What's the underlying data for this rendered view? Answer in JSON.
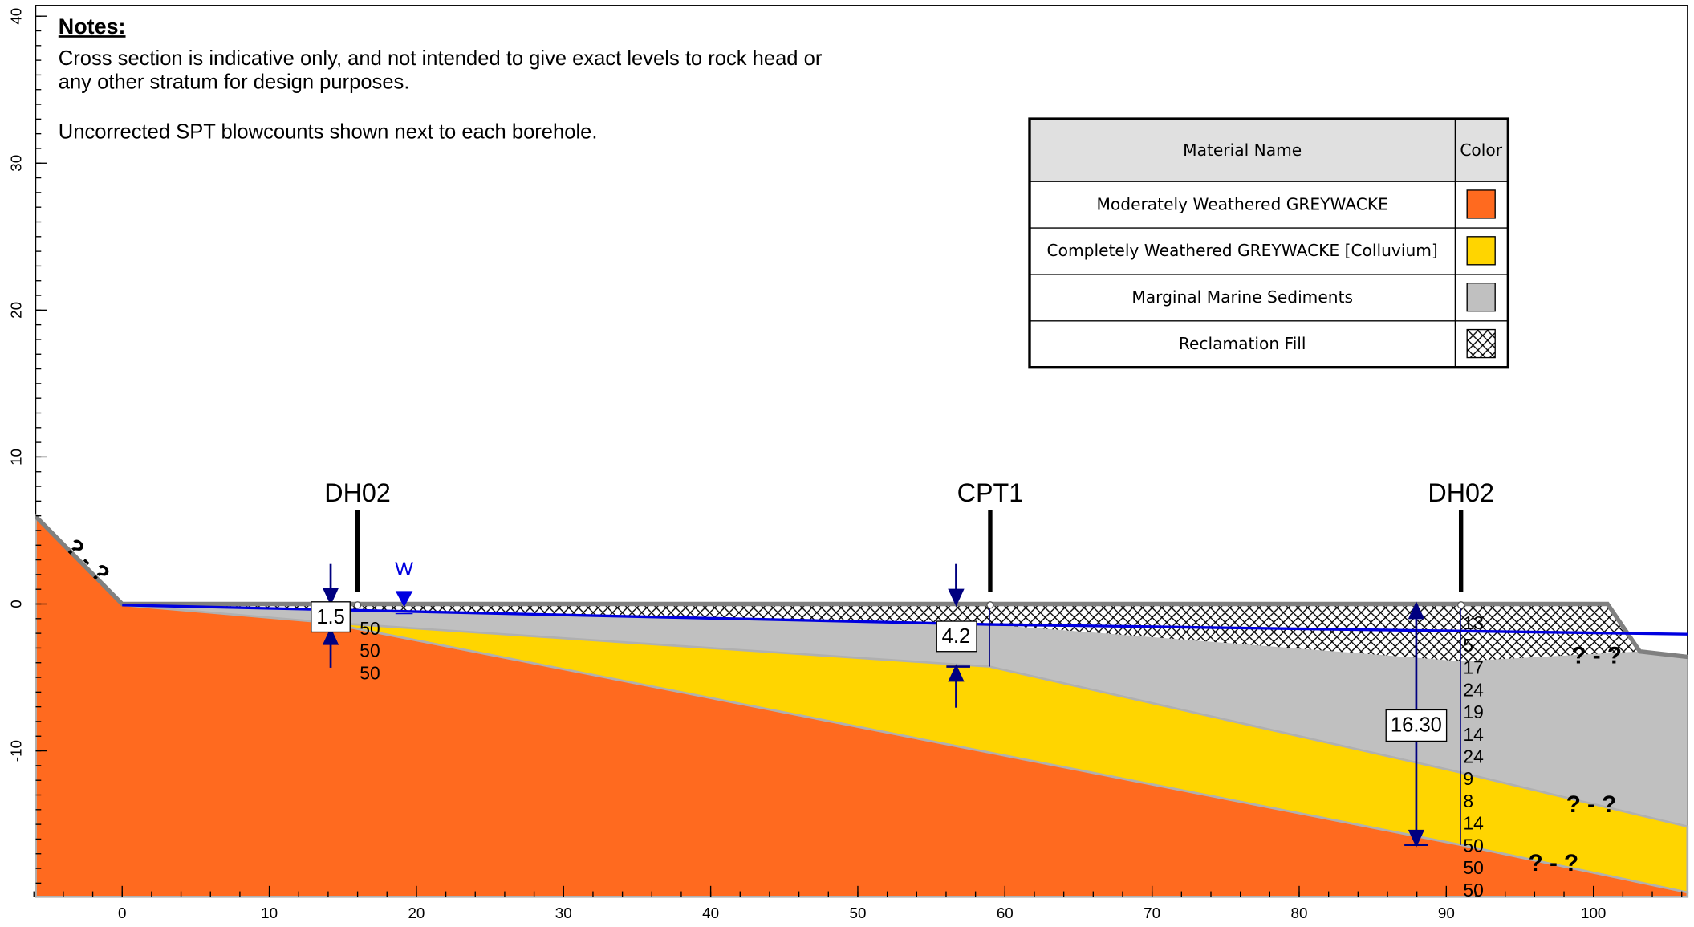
{
  "notes": {
    "title": "Notes:",
    "lines": [
      "Cross section is indicative only, and not intended to give exact levels to rock head or",
      "any other stratum for design purposes.",
      "Uncorrected SPT blowcounts shown next to each borehole."
    ]
  },
  "legend": {
    "header": [
      "Material Name",
      "Color"
    ],
    "rows": [
      {
        "name": "Moderately Weathered GREYWACKE",
        "color": "#ff6a1f"
      },
      {
        "name": "Completely Weathered GREYWACKE [Colluvium]",
        "color": "#ffd500"
      },
      {
        "name": "Marginal Marine Sediments",
        "color": "#c0c0c0"
      },
      {
        "name": "Reclamation Fill",
        "color": "hatch"
      }
    ]
  },
  "axes": {
    "xlim": [
      -6,
      107
    ],
    "ylim": [
      -20,
      40
    ],
    "xticks": [
      0,
      10,
      20,
      30,
      40,
      50,
      60,
      70,
      80,
      90,
      100
    ],
    "yticks": [
      -10,
      0,
      10,
      20,
      30,
      40
    ]
  },
  "boreholes": [
    {
      "label": "DH02",
      "x": 16,
      "spt": [
        50,
        50,
        50
      ]
    },
    {
      "label": "CPT1",
      "x": 59,
      "spt": []
    },
    {
      "label": "DH02",
      "x": 91,
      "spt": [
        13,
        5,
        17,
        24,
        19,
        14,
        24,
        9,
        8,
        14,
        50,
        50,
        50
      ]
    }
  ],
  "dimensions": [
    "1.5",
    "4.2",
    "16.30"
  ],
  "water_label": "W",
  "annotations": [
    "? - ?",
    "? - ?",
    "? - ?",
    "? - ?"
  ]
}
